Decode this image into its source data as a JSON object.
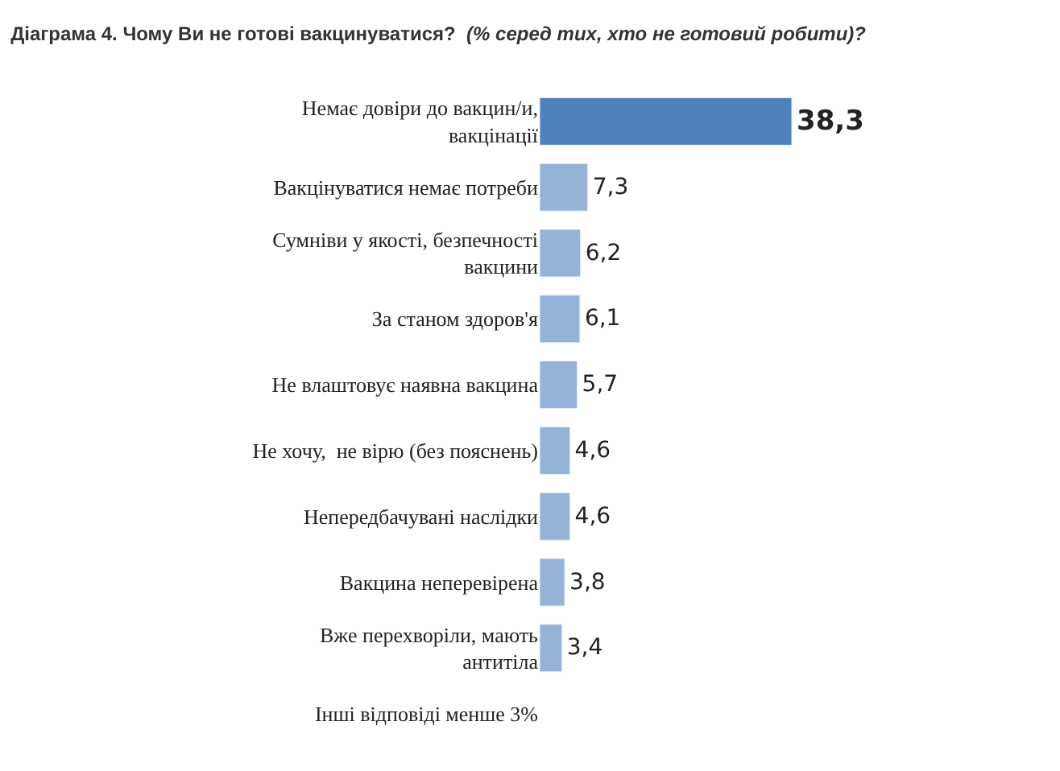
{
  "chart_data": {
    "type": "bar",
    "orientation": "horizontal",
    "title": "Діаграма 4. Чому Ви не готові вакцинуватися?",
    "subtitle": "(% серед тих, хто не готовий робити)?",
    "categories": [
      "Немає довіри до вакцин/и,\nвакцінації",
      "Вакцінуватися немає потреби",
      "Сумніви у якості, безпечності\nвакцини",
      "За станом здоров'я",
      "Не влаштовує наявна вакцина",
      "Не хочу,  не вірю (без пояснень)",
      "Непередбачувані наслідки",
      "Вакцина неперевірена",
      "Вже перехворіли, мають\nантитіла",
      "Інші відповіді менше 3%"
    ],
    "values": [
      38.3,
      7.3,
      6.2,
      6.1,
      5.7,
      4.6,
      4.6,
      3.8,
      3.4,
      null
    ],
    "value_labels": [
      "38,3",
      "7,3",
      "6,2",
      "6,1",
      "5,7",
      "4,6",
      "4,6",
      "3,8",
      "3,4",
      null
    ],
    "colors": [
      "#4f81bd",
      "#95b3d7",
      "#95b3d7",
      "#95b3d7",
      "#95b3d7",
      "#95b3d7",
      "#95b3d7",
      "#95b3d7",
      "#95b3d7",
      "#95b3d7"
    ]
  }
}
